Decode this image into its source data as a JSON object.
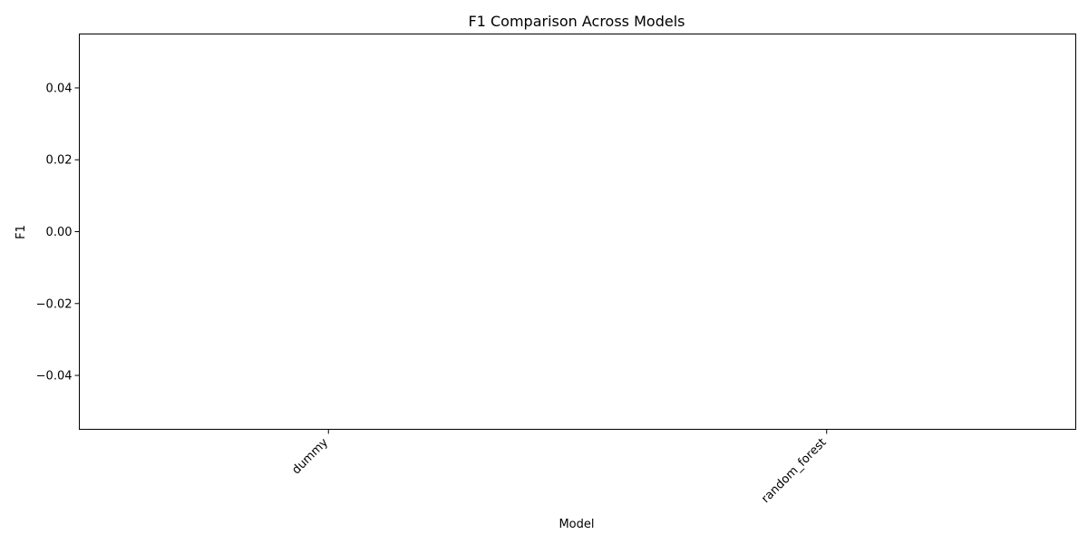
{
  "chart_data": {
    "type": "bar",
    "title": "F1 Comparison Across Models",
    "xlabel": "Model",
    "ylabel": "F1",
    "categories": [
      "dummy",
      "random_forest"
    ],
    "values": [
      0.0,
      0.0
    ],
    "ylim": [
      -0.055,
      0.055
    ],
    "yticks": [
      -0.04,
      -0.02,
      0.0,
      0.02,
      0.04
    ],
    "ytick_labels": [
      "−0.04",
      "−0.02",
      "0.00",
      "0.02",
      "0.04"
    ],
    "grid": false,
    "legend": "none",
    "colors": {
      "bar": "#1f77b4",
      "frame": "#000000"
    }
  }
}
